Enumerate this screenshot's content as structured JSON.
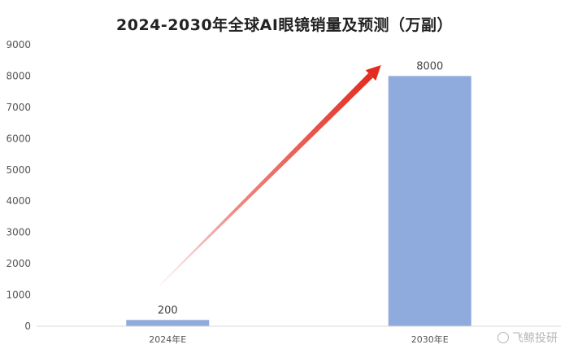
{
  "chart_data": {
    "type": "bar",
    "title": "2024-2030年全球AI眼镜销量及预测（万副）",
    "categories": [
      "2024年E",
      "2030年E"
    ],
    "values": [
      200,
      8000
    ],
    "data_labels": [
      "200",
      "8000"
    ],
    "ylim": [
      0,
      9000
    ],
    "yticks": [
      0,
      1000,
      2000,
      3000,
      4000,
      5000,
      6000,
      7000,
      8000,
      9000
    ],
    "xlabel": "",
    "ylabel": "",
    "grid": false,
    "legend": "none",
    "bar_color": "#8faadc",
    "annotation": {
      "type": "arrow",
      "color": "#e32b1f",
      "from": [
        "2024年E",
        1300
      ],
      "to": [
        "2030年E",
        8350
      ]
    }
  },
  "watermark": {
    "text": "飞鲸投研",
    "icon": "weibo-icon"
  }
}
